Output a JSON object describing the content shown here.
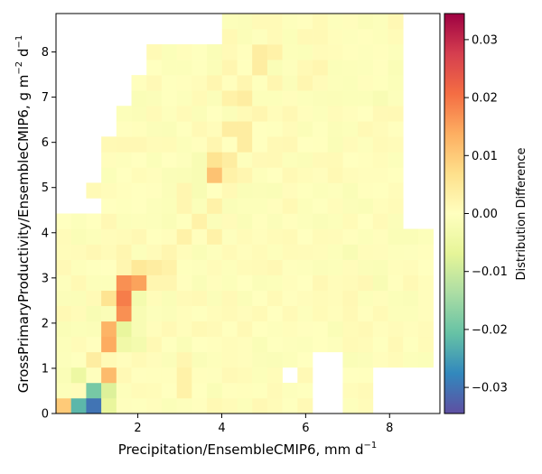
{
  "chart_data": {
    "type": "heatmap",
    "title": "",
    "xlabel": {
      "main": "Precipitation/EnsembleCMIP6,  mm d",
      "sup": "−1"
    },
    "ylabel": {
      "main": "GrossPrimaryProductivity/EnsembleCMIP6,  g m",
      "sup1": "−2",
      "mid": " d",
      "sup2": "−1"
    },
    "xlim": [
      0.05,
      9.2
    ],
    "ylim": [
      0.0,
      8.85
    ],
    "xticks": [
      {
        "value": 2,
        "label": "2"
      },
      {
        "value": 4,
        "label": "4"
      },
      {
        "value": 6,
        "label": "6"
      },
      {
        "value": 8,
        "label": "8"
      }
    ],
    "yticks": [
      {
        "value": 0,
        "label": "0"
      },
      {
        "value": 1,
        "label": "1"
      },
      {
        "value": 2,
        "label": "2"
      },
      {
        "value": 3,
        "label": "3"
      },
      {
        "value": 4,
        "label": "4"
      },
      {
        "value": 5,
        "label": "5"
      },
      {
        "value": 6,
        "label": "6"
      },
      {
        "value": 7,
        "label": "7"
      },
      {
        "value": 8,
        "label": "8"
      }
    ],
    "grid": false,
    "x_bin_edges_start": 0.05,
    "x_bin_width": 0.3597,
    "y_bin_edges_start": 0.0,
    "y_bin_width": 0.3404,
    "colorbar": {
      "label": "Distribution Difference",
      "vmin": -0.0345,
      "vmax": 0.0345,
      "colormap": "Spectral_r",
      "ticks": [
        {
          "value": 0.03,
          "label": "0.03"
        },
        {
          "value": 0.02,
          "label": "0.02"
        },
        {
          "value": 0.01,
          "label": "0.01"
        },
        {
          "value": 0.0,
          "label": "0.00"
        },
        {
          "value": -0.01,
          "label": "−0.01"
        },
        {
          "value": -0.02,
          "label": "−0.02"
        },
        {
          "value": -0.03,
          "label": "−0.03"
        }
      ]
    },
    "special_cells": [
      {
        "col": 0,
        "row": 0,
        "value": 0.01
      },
      {
        "col": 1,
        "row": 0,
        "value": -0.022
      },
      {
        "col": 2,
        "row": 0,
        "value": -0.03
      },
      {
        "col": 3,
        "row": 0,
        "value": -0.006
      },
      {
        "col": 2,
        "row": 1,
        "value": -0.019
      },
      {
        "col": 3,
        "row": 1,
        "value": -0.008
      },
      {
        "col": 1,
        "row": 2,
        "value": -0.005
      },
      {
        "col": 3,
        "row": 2,
        "value": 0.012
      },
      {
        "col": 2,
        "row": 3,
        "value": 0.004
      },
      {
        "col": 3,
        "row": 4,
        "value": 0.014
      },
      {
        "col": 4,
        "row": 4,
        "value": -0.004
      },
      {
        "col": 3,
        "row": 5,
        "value": 0.013
      },
      {
        "col": 2,
        "row": 6,
        "value": -0.002
      },
      {
        "col": 4,
        "row": 5,
        "value": -0.006
      },
      {
        "col": 4,
        "row": 6,
        "value": 0.017
      },
      {
        "col": 4,
        "row": 7,
        "value": 0.019
      },
      {
        "col": 3,
        "row": 7,
        "value": 0.006
      },
      {
        "col": 4,
        "row": 8,
        "value": 0.017
      },
      {
        "col": 4,
        "row": 9,
        "value": 0.002
      },
      {
        "col": 5,
        "row": 7,
        "value": -0.003
      },
      {
        "col": 5,
        "row": 8,
        "value": 0.015
      },
      {
        "col": 4,
        "row": 10,
        "value": 0.002
      },
      {
        "col": 5,
        "row": 9,
        "value": 0.005
      },
      {
        "col": 6,
        "row": 8,
        "value": 0.002
      },
      {
        "col": 7,
        "row": 8,
        "value": 0.002
      },
      {
        "col": 6,
        "row": 9,
        "value": 0.004
      },
      {
        "col": 7,
        "row": 10,
        "value": 0.002
      },
      {
        "col": 8,
        "row": 3,
        "value": 0.002
      },
      {
        "col": 8,
        "row": 1,
        "value": 0.003
      },
      {
        "col": 8,
        "row": 2,
        "value": 0.003
      },
      {
        "col": 5,
        "row": 4,
        "value": -0.003
      },
      {
        "col": 5,
        "row": 6,
        "value": -0.002
      },
      {
        "col": 5,
        "row": 5,
        "value": -0.002
      },
      {
        "col": 7,
        "row": 9,
        "value": 0.003
      },
      {
        "col": 8,
        "row": 11,
        "value": 0.003
      },
      {
        "col": 9,
        "row": 12,
        "value": 0.003
      },
      {
        "col": 10,
        "row": 11,
        "value": 0.003
      },
      {
        "col": 8,
        "row": 14,
        "value": 0.002
      },
      {
        "col": 7,
        "row": 13,
        "value": -0.001
      },
      {
        "col": 8,
        "row": 13,
        "value": 0.002
      },
      {
        "col": 6,
        "row": 16,
        "value": -0.001
      },
      {
        "col": 9,
        "row": 15,
        "value": -0.002
      },
      {
        "col": 9,
        "row": 16,
        "value": -0.002
      },
      {
        "col": 10,
        "row": 16,
        "value": 0.006
      },
      {
        "col": 10,
        "row": 13,
        "value": 0.003
      },
      {
        "col": 11,
        "row": 15,
        "value": 0.003
      },
      {
        "col": 12,
        "row": 15,
        "value": 0.002
      },
      {
        "col": 10,
        "row": 17,
        "value": 0.002
      },
      {
        "col": 10,
        "row": 15,
        "value": 0.011
      },
      {
        "col": 11,
        "row": 16,
        "value": 0.004
      },
      {
        "col": 12,
        "row": 17,
        "value": 0.004
      },
      {
        "col": 11,
        "row": 18,
        "value": 0.004
      },
      {
        "col": 12,
        "row": 18,
        "value": 0.004
      },
      {
        "col": 11,
        "row": 20,
        "value": 0.003
      },
      {
        "col": 12,
        "row": 20,
        "value": 0.004
      },
      {
        "col": 13,
        "row": 19,
        "value": 0.002
      },
      {
        "col": 11,
        "row": 22,
        "value": 0.002
      },
      {
        "col": 13,
        "row": 22,
        "value": 0.004
      },
      {
        "col": 13,
        "row": 23,
        "value": 0.004
      },
      {
        "col": 14,
        "row": 23,
        "value": 0.003
      },
      {
        "col": 14,
        "row": 21,
        "value": 0.002
      },
      {
        "col": 12,
        "row": 21,
        "value": 0.002
      },
      {
        "col": 10,
        "row": 21,
        "value": 0.002
      },
      {
        "col": 9,
        "row": 14,
        "value": -0.002
      },
      {
        "col": 9,
        "row": 13,
        "value": -0.001
      },
      {
        "col": 15,
        "row": 24,
        "value": -0.001
      },
      {
        "col": 16,
        "row": 23,
        "value": -0.001
      },
      {
        "col": 16,
        "row": 21,
        "value": 0.002
      },
      {
        "col": 17,
        "row": 22,
        "value": 0.002
      },
      {
        "col": 18,
        "row": 22,
        "value": -0.001
      },
      {
        "col": 19,
        "row": 21,
        "value": -0.001
      },
      {
        "col": 20,
        "row": 20,
        "value": -0.001
      },
      {
        "col": 21,
        "row": 20,
        "value": -0.002
      },
      {
        "col": 22,
        "row": 21,
        "value": -0.001
      },
      {
        "col": 19,
        "row": 10,
        "value": -0.002
      },
      {
        "col": 21,
        "row": 8,
        "value": -0.002
      },
      {
        "col": 17,
        "row": 6,
        "value": 0.001
      },
      {
        "col": 19,
        "row": 5,
        "value": 0.001
      }
    ],
    "empty_cells": "rendered as white where no data"
  }
}
